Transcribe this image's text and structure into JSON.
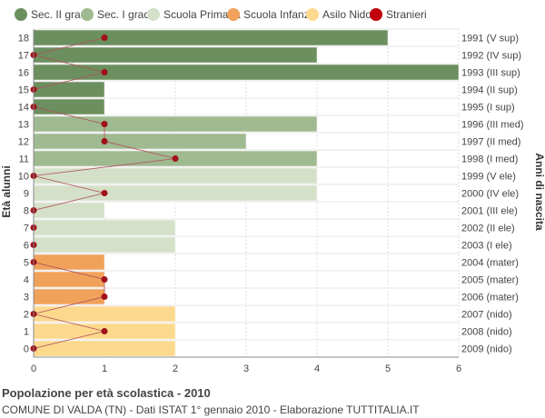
{
  "chart_data": {
    "type": "bar",
    "orientation": "horizontal",
    "y_axis_label": "Età alunni",
    "y2_axis_label": "Anni di nascita",
    "xlim": [
      0,
      6
    ],
    "x_ticks": [
      "0",
      "1",
      "2",
      "3",
      "4",
      "5",
      "6"
    ],
    "grid": true,
    "legend_position": "top",
    "legend": [
      {
        "name": "Sec. II grado",
        "color": "#6b8f5e"
      },
      {
        "name": "Sec. I grado",
        "color": "#9fba90"
      },
      {
        "name": "Scuola Primaria",
        "color": "#d4e0c8"
      },
      {
        "name": "Scuola Infanzia",
        "color": "#f0a15a"
      },
      {
        "name": "Asilo Nido",
        "color": "#fdd98e"
      },
      {
        "name": "Stranieri",
        "color": "#c0000b"
      }
    ],
    "rows": [
      {
        "age": "18",
        "birth": "1991 (V sup)",
        "value": 5,
        "group": 0,
        "stranieri": 1
      },
      {
        "age": "17",
        "birth": "1992 (IV sup)",
        "value": 4,
        "group": 0,
        "stranieri": 0
      },
      {
        "age": "16",
        "birth": "1993 (III sup)",
        "value": 6,
        "group": 0,
        "stranieri": 1
      },
      {
        "age": "15",
        "birth": "1994 (II sup)",
        "value": 1,
        "group": 0,
        "stranieri": 0
      },
      {
        "age": "14",
        "birth": "1995 (I sup)",
        "value": 1,
        "group": 0,
        "stranieri": 0
      },
      {
        "age": "13",
        "birth": "1996 (III med)",
        "value": 4,
        "group": 1,
        "stranieri": 1
      },
      {
        "age": "12",
        "birth": "1997 (II med)",
        "value": 3,
        "group": 1,
        "stranieri": 1
      },
      {
        "age": "11",
        "birth": "1998 (I med)",
        "value": 4,
        "group": 1,
        "stranieri": 2
      },
      {
        "age": "10",
        "birth": "1999 (V ele)",
        "value": 4,
        "group": 2,
        "stranieri": 0
      },
      {
        "age": "9",
        "birth": "2000 (IV ele)",
        "value": 4,
        "group": 2,
        "stranieri": 1
      },
      {
        "age": "8",
        "birth": "2001 (III ele)",
        "value": 1,
        "group": 2,
        "stranieri": 0
      },
      {
        "age": "7",
        "birth": "2002 (II ele)",
        "value": 2,
        "group": 2,
        "stranieri": 0
      },
      {
        "age": "6",
        "birth": "2003 (I ele)",
        "value": 2,
        "group": 2,
        "stranieri": 0
      },
      {
        "age": "5",
        "birth": "2004 (mater)",
        "value": 1,
        "group": 3,
        "stranieri": 0
      },
      {
        "age": "4",
        "birth": "2005 (mater)",
        "value": 1,
        "group": 3,
        "stranieri": 1
      },
      {
        "age": "3",
        "birth": "2006 (mater)",
        "value": 1,
        "group": 3,
        "stranieri": 1
      },
      {
        "age": "2",
        "birth": "2007 (nido)",
        "value": 2,
        "group": 4,
        "stranieri": 0
      },
      {
        "age": "1",
        "birth": "2008 (nido)",
        "value": 2,
        "group": 4,
        "stranieri": 1
      },
      {
        "age": "0",
        "birth": "2009 (nido)",
        "value": 2,
        "group": 4,
        "stranieri": 0
      }
    ]
  },
  "footer": {
    "title": "Popolazione per età scolastica - 2010",
    "subtitle": "COMUNE DI VALDA (TN) - Dati ISTAT 1° gennaio 2010 - Elaborazione TUTTITALIA.IT"
  }
}
